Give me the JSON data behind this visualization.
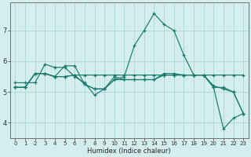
{
  "xlabel": "Humidex (Indice chaleur)",
  "bg_color": "#d4eeee",
  "grid_color": "#aed4d4",
  "line_color": "#1a7a6e",
  "xlim": [
    -0.5,
    23.5
  ],
  "ylim": [
    3.5,
    7.9
  ],
  "yticks": [
    4,
    5,
    6,
    7
  ],
  "xticks": [
    0,
    1,
    2,
    3,
    4,
    5,
    6,
    7,
    8,
    9,
    10,
    11,
    12,
    13,
    14,
    15,
    16,
    17,
    18,
    19,
    20,
    21,
    22,
    23
  ],
  "series": [
    {
      "x": [
        0,
        1,
        2,
        3,
        4,
        5,
        6,
        7,
        8,
        9,
        10,
        11,
        12,
        13,
        14,
        15,
        16,
        17,
        18,
        19,
        20,
        21,
        22,
        23
      ],
      "y": [
        5.3,
        5.3,
        5.3,
        5.9,
        5.8,
        5.8,
        5.5,
        5.3,
        4.9,
        5.1,
        5.5,
        5.4,
        5.4,
        5.4,
        5.4,
        5.6,
        5.6,
        5.55,
        5.55,
        5.55,
        5.2,
        5.1,
        5.0,
        4.3
      ]
    },
    {
      "x": [
        0,
        1,
        2,
        3,
        4,
        5,
        6,
        7,
        8,
        9,
        10,
        11,
        12,
        13,
        14,
        15,
        16,
        17,
        18,
        19,
        20,
        21,
        22,
        23
      ],
      "y": [
        5.15,
        5.15,
        5.6,
        5.6,
        5.5,
        5.5,
        5.55,
        5.55,
        5.55,
        5.55,
        5.55,
        5.55,
        5.55,
        5.55,
        5.55,
        5.55,
        5.55,
        5.55,
        5.55,
        5.55,
        5.55,
        5.55,
        5.55,
        5.55
      ]
    },
    {
      "x": [
        0,
        1,
        2,
        3,
        4,
        5,
        6,
        7,
        8,
        9,
        10,
        11,
        12,
        13,
        14,
        15,
        16,
        17,
        18,
        19,
        20,
        21,
        22,
        23
      ],
      "y": [
        5.15,
        5.15,
        5.6,
        5.6,
        5.5,
        5.85,
        5.85,
        5.25,
        5.1,
        5.1,
        5.4,
        5.5,
        6.5,
        7.0,
        7.55,
        7.2,
        7.0,
        6.2,
        5.55,
        5.55,
        5.15,
        3.8,
        4.15,
        4.3
      ]
    },
    {
      "x": [
        0,
        1,
        2,
        3,
        4,
        5,
        6,
        7,
        8,
        9,
        10,
        11,
        12,
        13,
        14,
        15,
        16,
        17,
        18,
        19,
        20,
        21,
        22,
        23
      ],
      "y": [
        5.15,
        5.15,
        5.6,
        5.6,
        5.5,
        5.5,
        5.55,
        5.25,
        5.1,
        5.1,
        5.4,
        5.4,
        5.4,
        5.4,
        5.4,
        5.55,
        5.55,
        5.55,
        5.55,
        5.55,
        5.15,
        5.15,
        5.0,
        4.3
      ]
    }
  ]
}
